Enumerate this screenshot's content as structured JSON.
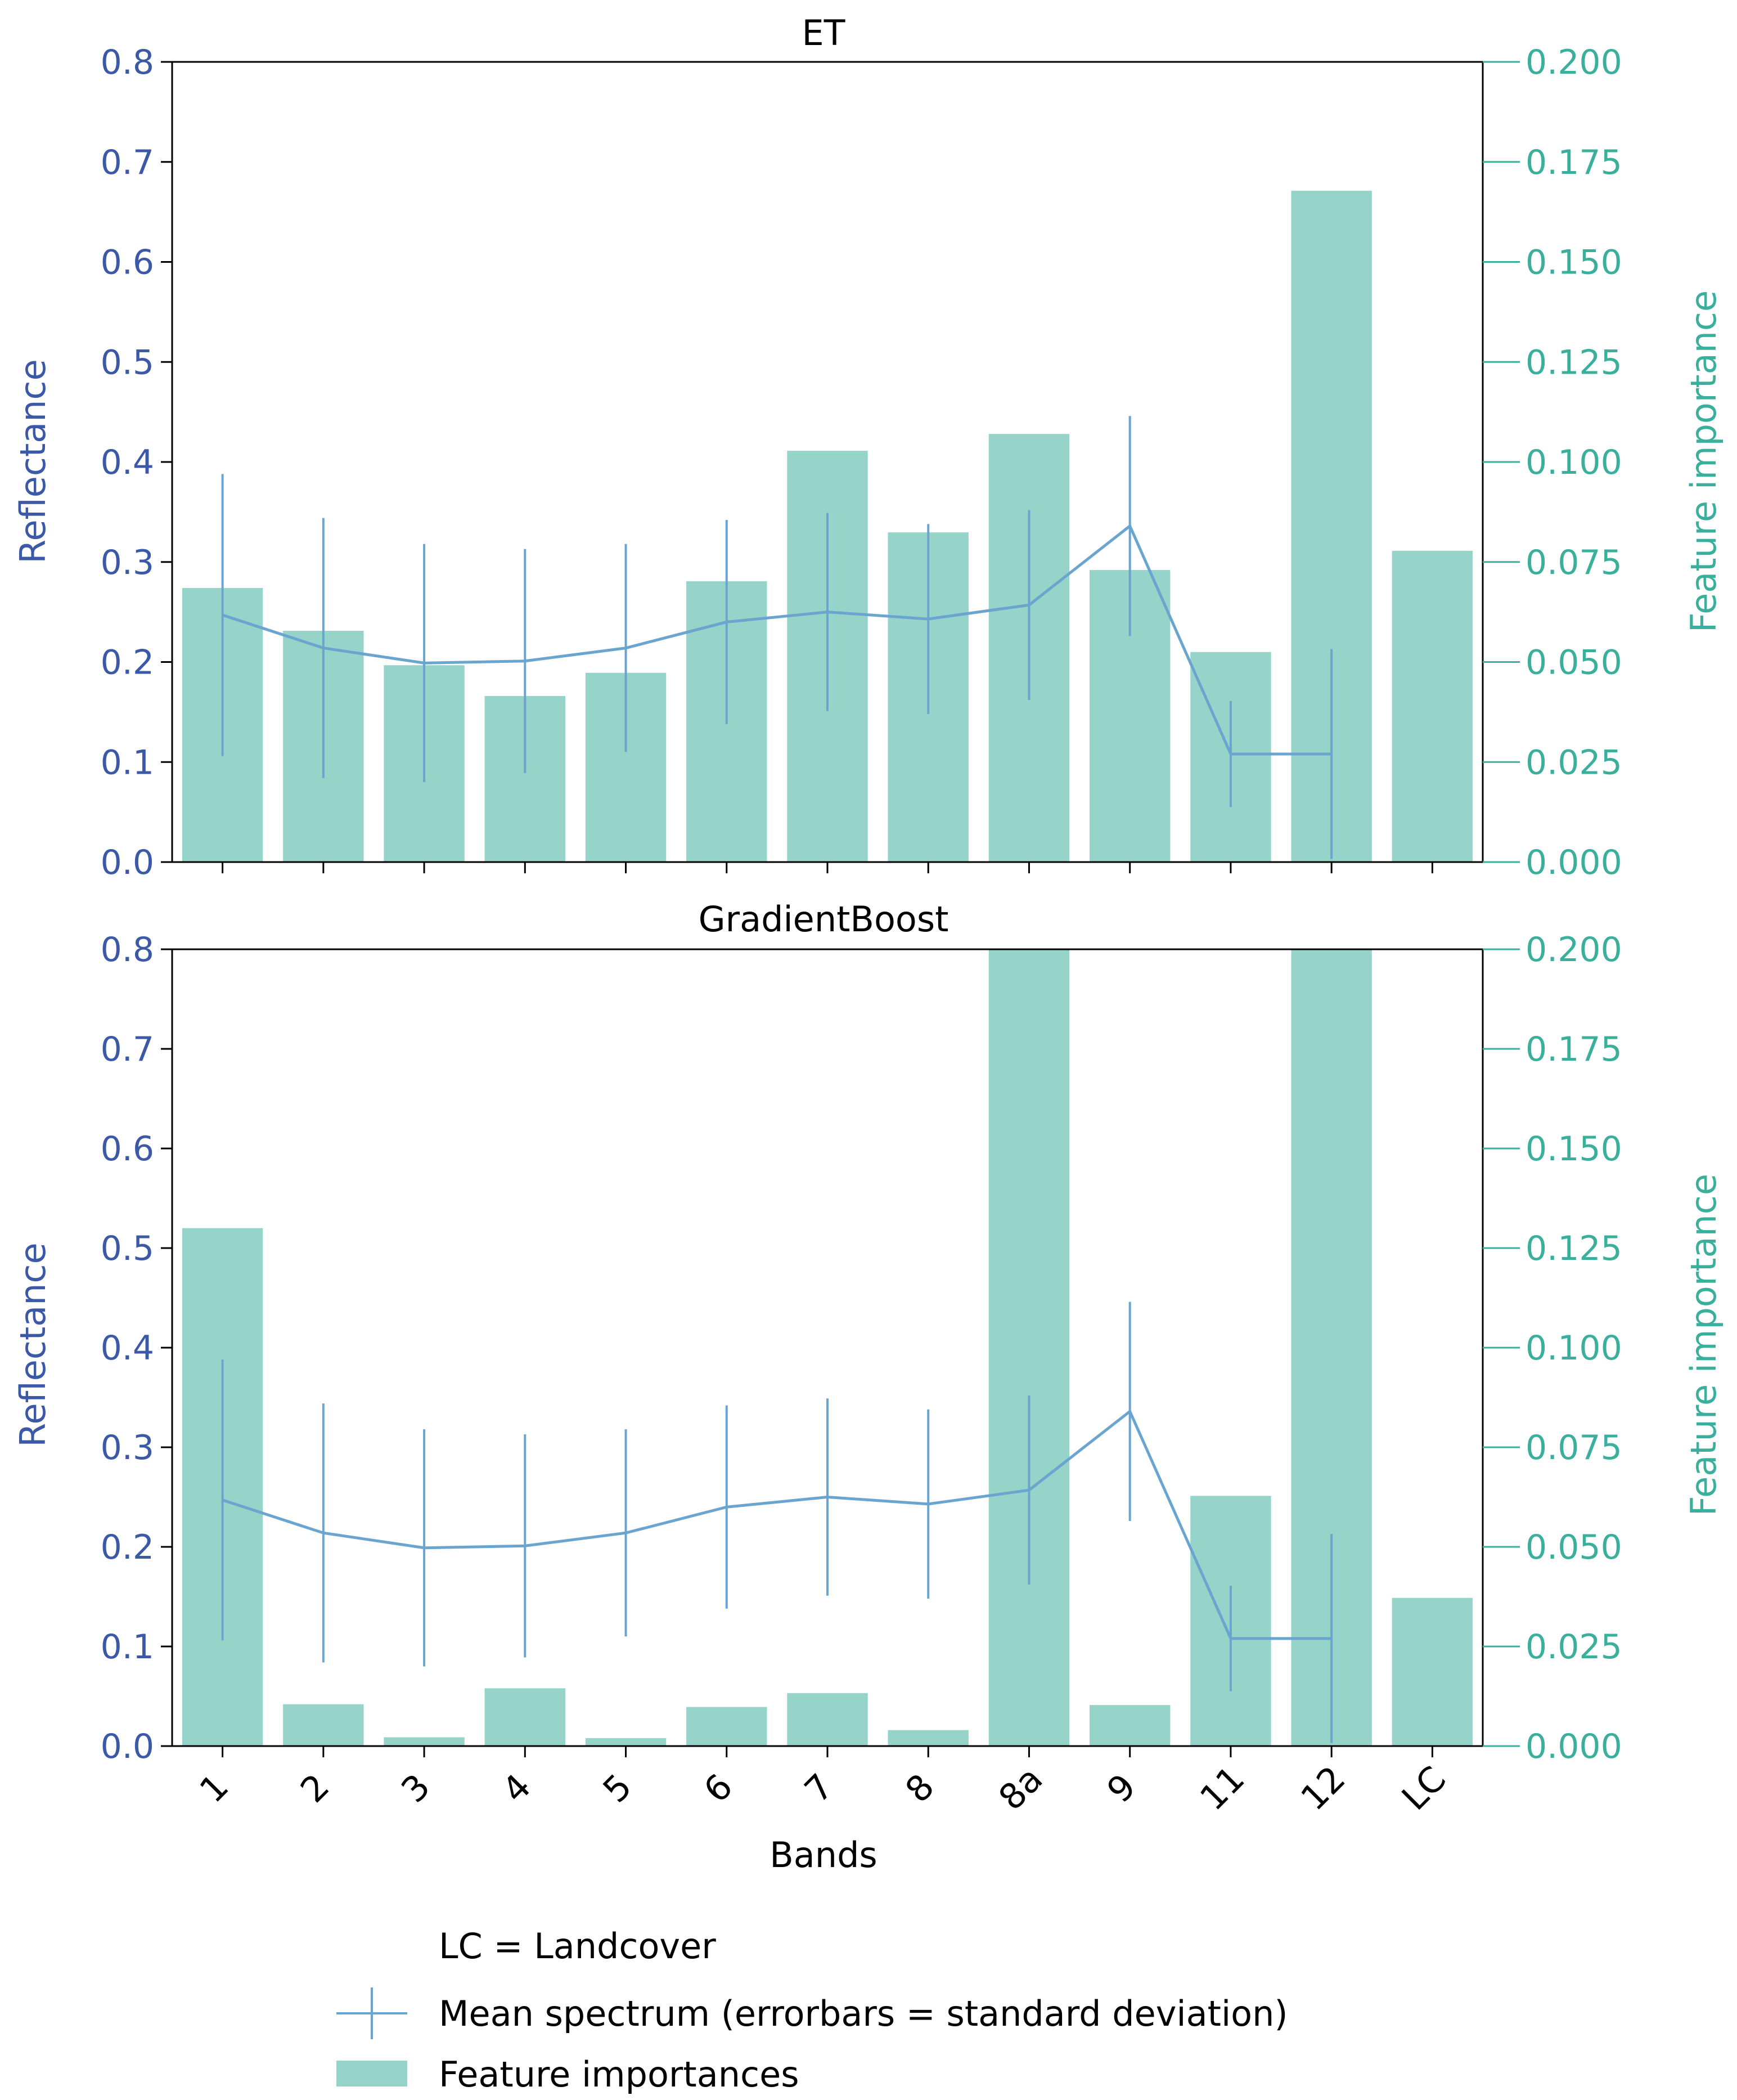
{
  "chart_data": {
    "type": "bar",
    "categories": [
      "1",
      "2",
      "3",
      "4",
      "5",
      "6",
      "7",
      "8",
      "8a",
      "9",
      "11",
      "12",
      "LC"
    ],
    "xlabel": "Bands",
    "left_axis": {
      "label": "Reflectance",
      "ylim": [
        0,
        0.8
      ],
      "ticks": [
        "0.0",
        "0.1",
        "0.2",
        "0.3",
        "0.4",
        "0.5",
        "0.6",
        "0.7",
        "0.8"
      ],
      "color": "#3b59a7"
    },
    "right_axis": {
      "label": "Feature importance",
      "ylim": [
        0,
        0.2
      ],
      "ticks": [
        "0.000",
        "0.025",
        "0.050",
        "0.075",
        "0.100",
        "0.125",
        "0.150",
        "0.175",
        "0.200"
      ],
      "color": "#3aaf9b"
    },
    "mean_spectrum": {
      "categories": [
        "1",
        "2",
        "3",
        "4",
        "5",
        "6",
        "7",
        "8",
        "8a",
        "9",
        "11",
        "12"
      ],
      "mean": [
        0.247,
        0.214,
        0.199,
        0.201,
        0.214,
        0.24,
        0.25,
        0.243,
        0.257,
        0.336,
        0.108,
        0.108
      ],
      "std": [
        0.141,
        0.13,
        0.119,
        0.112,
        0.104,
        0.102,
        0.099,
        0.095,
        0.095,
        0.11,
        0.053,
        0.105
      ],
      "color": "#6aa5d0"
    },
    "panels": [
      {
        "title": "ET",
        "feature_importances": [
          0.0685,
          0.0578,
          0.0492,
          0.0415,
          0.0473,
          0.0702,
          0.1028,
          0.0824,
          0.107,
          0.073,
          0.0525,
          0.1678,
          0.0778
        ]
      },
      {
        "title": "GradientBoost",
        "feature_importances": [
          0.13,
          0.0105,
          0.0022,
          0.0145,
          0.002,
          0.0098,
          0.0133,
          0.004,
          0.2,
          0.0103,
          0.0628,
          0.2,
          0.0372
        ]
      }
    ],
    "bar_color": "#96d3c8",
    "legend": {
      "placement": "bottom",
      "note": "LC = Landcover",
      "line_label": "Mean spectrum (errorbars = standard deviation)",
      "bar_label": "Feature importances"
    }
  }
}
